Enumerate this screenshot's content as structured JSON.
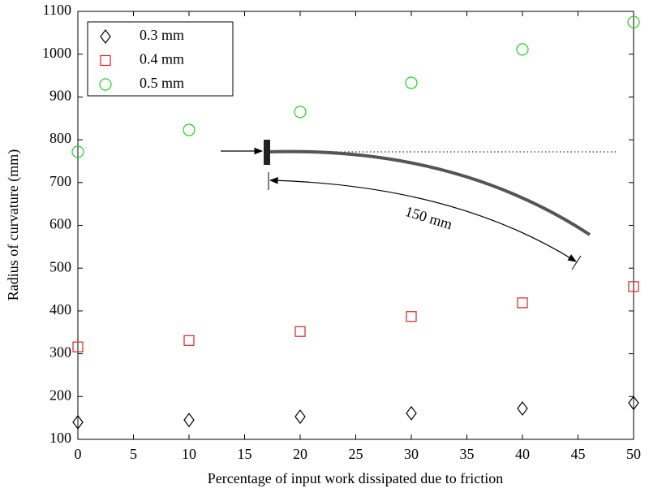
{
  "chart_data": {
    "type": "scatter",
    "x_label": "Percentage of input work dissipated due to friction",
    "y_label": "Radius of curvature (mm)",
    "annotation": "150 mm",
    "xlim": [
      0,
      50
    ],
    "xticks": [
      0,
      5,
      10,
      15,
      20,
      25,
      30,
      35,
      40,
      45,
      50
    ],
    "ylim": [
      100,
      1100
    ],
    "yticks": [
      100,
      200,
      300,
      400,
      500,
      600,
      700,
      800,
      900,
      1000,
      1100
    ],
    "legend": "upper left",
    "series": [
      {
        "name": "0.3 mm",
        "color": "#000000",
        "marker": "diamond",
        "x": [
          0,
          10,
          20,
          30,
          40,
          50
        ],
        "values": [
          140,
          145,
          153,
          161,
          172,
          185
        ]
      },
      {
        "name": "0.4 mm",
        "color": "#e02020",
        "marker": "square",
        "x": [
          0,
          10,
          20,
          30,
          40,
          50
        ],
        "values": [
          316,
          331,
          352,
          387,
          419,
          457
        ]
      },
      {
        "name": "0.5 mm",
        "color": "#22d022",
        "marker": "circle",
        "x": [
          0,
          10,
          20,
          30,
          40,
          50
        ],
        "values": [
          772,
          823,
          865,
          933,
          1011,
          1075
        ]
      }
    ]
  }
}
